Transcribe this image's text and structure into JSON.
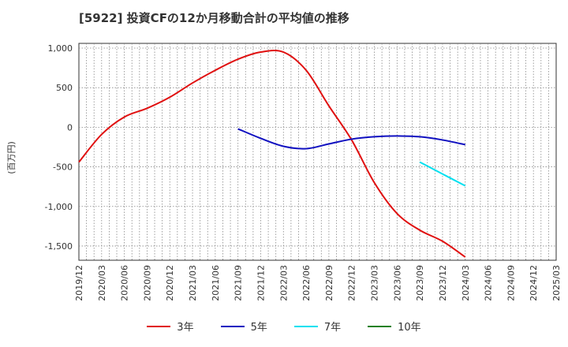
{
  "title": "[5922]  投資CFの12か月移動合計の平均値の推移",
  "chart_data": {
    "type": "line",
    "ylabel": "(百万円)",
    "ylim": [
      -1680,
      1060
    ],
    "yticks": [
      1000,
      500,
      0,
      -500,
      -1000,
      -1500
    ],
    "ytick_labels": [
      "1,000",
      "500",
      "0",
      "-500",
      "-1,000",
      "-1,500"
    ],
    "x_labels": [
      "2019/12",
      "2020/03",
      "2020/06",
      "2020/09",
      "2020/12",
      "2021/03",
      "2021/06",
      "2021/09",
      "2021/12",
      "2022/03",
      "2022/06",
      "2022/09",
      "2022/12",
      "2023/03",
      "2023/06",
      "2023/09",
      "2023/12",
      "2024/03",
      "2024/06",
      "2024/09",
      "2024/12",
      "2025/03"
    ],
    "grid": true,
    "legend_position": "bottom",
    "series": [
      {
        "name": "3年",
        "color": "#e01010",
        "values": [
          -440,
          -90,
          130,
          240,
          380,
          560,
          720,
          860,
          950,
          950,
          720,
          270,
          -160,
          -700,
          -1090,
          -1300,
          -1440,
          -1640,
          null,
          null,
          null,
          null
        ]
      },
      {
        "name": "5年",
        "color": "#1010c0",
        "values": [
          null,
          null,
          null,
          null,
          null,
          null,
          null,
          -20,
          -140,
          -240,
          -270,
          -210,
          -150,
          -120,
          -110,
          -120,
          -160,
          -220,
          null,
          null,
          null,
          null
        ]
      },
      {
        "name": "7年",
        "color": "#00e0f0",
        "values": [
          null,
          null,
          null,
          null,
          null,
          null,
          null,
          null,
          null,
          null,
          null,
          null,
          null,
          null,
          null,
          -440,
          -590,
          -740,
          null,
          null,
          null,
          null
        ]
      },
      {
        "name": "10年",
        "color": "#208020",
        "values": [
          null,
          null,
          null,
          null,
          null,
          null,
          null,
          null,
          null,
          null,
          null,
          null,
          null,
          null,
          null,
          null,
          null,
          null,
          null,
          null,
          null,
          null
        ]
      }
    ]
  }
}
